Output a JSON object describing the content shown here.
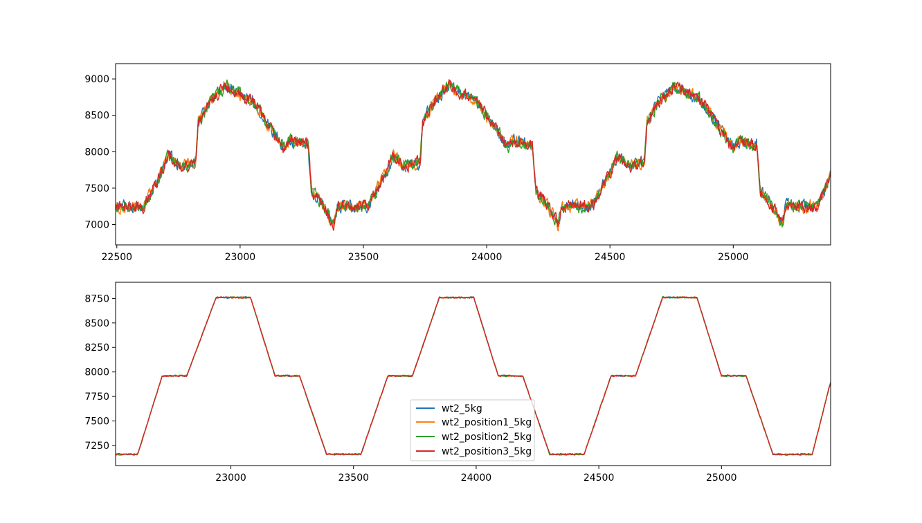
{
  "chart_data": [
    {
      "type": "line",
      "xlim": [
        22495,
        25395
      ],
      "ylim": [
        6720,
        9210
      ],
      "xticks": [
        22500,
        23000,
        23500,
        24000,
        24500,
        25000
      ],
      "yticks": [
        7000,
        7500,
        8000,
        8500,
        9000
      ],
      "period": 910,
      "profile_x": [
        22495,
        22610,
        22680,
        22710,
        22760,
        22820,
        22830,
        22880,
        22940,
        23050,
        23120,
        23180,
        23200,
        23275,
        23290,
        23330,
        23380,
        23395,
        23520,
        23590,
        23620,
        23670,
        23730,
        23740,
        23790,
        23850,
        23960,
        24030,
        24090,
        24110,
        24185,
        24200,
        24240,
        24290,
        24305,
        24430,
        24500,
        24530,
        24580,
        24640,
        24650,
        24700,
        24760,
        24870,
        24940,
        25000,
        25020,
        25095,
        25110,
        25150,
        25200,
        25215,
        25340,
        25395
      ],
      "profile_y": [
        7250,
        7250,
        7700,
        7950,
        7800,
        7850,
        8400,
        8700,
        8900,
        8700,
        8350,
        8050,
        8150,
        8100,
        7450,
        7300,
        7000,
        7250,
        7250,
        7700,
        7950,
        7800,
        7850,
        8400,
        8700,
        8900,
        8700,
        8350,
        8050,
        8150,
        8100,
        7450,
        7300,
        7000,
        7250,
        7250,
        7700,
        7950,
        7800,
        7850,
        8400,
        8700,
        8900,
        8700,
        8350,
        8050,
        8150,
        8100,
        7450,
        7300,
        7000,
        7250,
        7250,
        7650
      ],
      "noise_amplitude": 110,
      "series": [
        {
          "color": "#1f77b4"
        },
        {
          "color": "#ff7f0e"
        },
        {
          "color": "#2ca02c"
        },
        {
          "color": "#d62728"
        }
      ]
    },
    {
      "type": "line",
      "xlim": [
        22530,
        25445
      ],
      "ylim": [
        7045,
        8915
      ],
      "xticks": [
        23000,
        23500,
        24000,
        24500,
        25000
      ],
      "yticks": [
        7250,
        7500,
        7750,
        8000,
        8250,
        8500,
        8750
      ],
      "profile_x": [
        22530,
        22620,
        22720,
        22820,
        22940,
        23080,
        23180,
        23280,
        23390,
        23530,
        23640,
        23740,
        23850,
        23990,
        24090,
        24190,
        24300,
        24440,
        24550,
        24650,
        24760,
        24900,
        25000,
        25100,
        25210,
        25370,
        25445
      ],
      "profile_y": [
        7160,
        7160,
        7960,
        7960,
        8760,
        8760,
        7960,
        7960,
        7160,
        7160,
        7960,
        7960,
        8760,
        8760,
        7960,
        7960,
        7160,
        7160,
        7960,
        7960,
        8760,
        8760,
        7960,
        7960,
        7160,
        7160,
        7900
      ],
      "noise_amplitude": 12,
      "series": [
        {
          "name": "wt2_5kg",
          "color": "#1f77b4"
        },
        {
          "name": "wt2_position1_5kg",
          "color": "#ff7f0e"
        },
        {
          "name": "wt2_position2_5kg",
          "color": "#2ca02c"
        },
        {
          "name": "wt2_position3_5kg",
          "color": "#d62728"
        }
      ]
    }
  ]
}
